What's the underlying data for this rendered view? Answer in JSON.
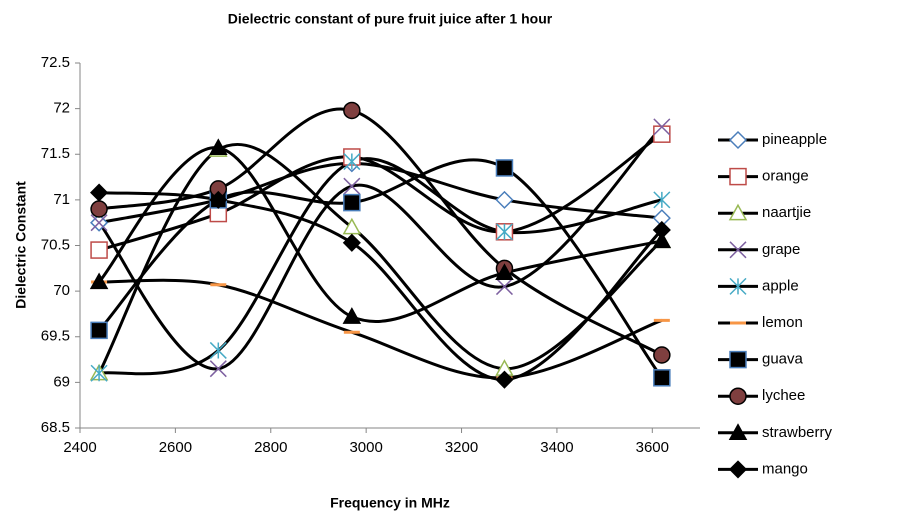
{
  "chart_data": {
    "type": "line",
    "smooth": true,
    "title": "Dielectric constant of pure fruit juice after 1 hour",
    "x_label": "Frequency in MHz",
    "y_label": "Dielectric Constant",
    "x": [
      2440,
      2690,
      2970,
      3290,
      3620
    ],
    "xlim": [
      2400,
      3700
    ],
    "xticks": [
      2400,
      2600,
      2800,
      3000,
      3200,
      3400,
      3600
    ],
    "ylim": [
      68.5,
      72.5
    ],
    "yticks": [
      68.5,
      69,
      69.5,
      70,
      70.5,
      71,
      71.5,
      72,
      72.5
    ],
    "grid": false,
    "legend": "right",
    "line_color": "#000000",
    "series": [
      {
        "name": "pineapple",
        "color": "#4a7ebb",
        "marker": "diamond-open",
        "values": [
          70.75,
          71.0,
          71.4,
          71.0,
          70.8
        ]
      },
      {
        "name": "orange",
        "color": "#be4b48",
        "marker": "square-open",
        "values": [
          70.45,
          70.85,
          71.47,
          70.65,
          71.72
        ]
      },
      {
        "name": "naartjie",
        "color": "#98b954",
        "marker": "triangle-open",
        "values": [
          69.1,
          71.55,
          70.7,
          69.15,
          70.55
        ]
      },
      {
        "name": "grape",
        "color": "#7d60a0",
        "marker": "x",
        "values": [
          70.75,
          69.15,
          71.15,
          70.05,
          71.8
        ]
      },
      {
        "name": "apple",
        "color": "#46aac5",
        "marker": "star",
        "values": [
          69.1,
          69.35,
          71.42,
          70.65,
          71.0
        ]
      },
      {
        "name": "lemon",
        "color": "#f79646",
        "marker": "dash",
        "values": [
          70.1,
          70.07,
          69.55,
          69.05,
          69.68
        ]
      },
      {
        "name": "guava",
        "color": "#000000",
        "marker": "square",
        "values": [
          69.57,
          71.0,
          70.97,
          71.35,
          69.05
        ]
      },
      {
        "name": "lychee",
        "color": "#7f3f3f",
        "marker": "circle",
        "values": [
          70.9,
          71.12,
          71.98,
          70.25,
          69.3
        ]
      },
      {
        "name": "strawberry",
        "color": "#000000",
        "marker": "triangle",
        "values": [
          70.1,
          71.57,
          69.72,
          70.2,
          70.55
        ]
      },
      {
        "name": "mango",
        "color": "#000000",
        "marker": "diamond",
        "values": [
          71.08,
          71.0,
          70.53,
          69.03,
          70.67
        ]
      }
    ]
  }
}
